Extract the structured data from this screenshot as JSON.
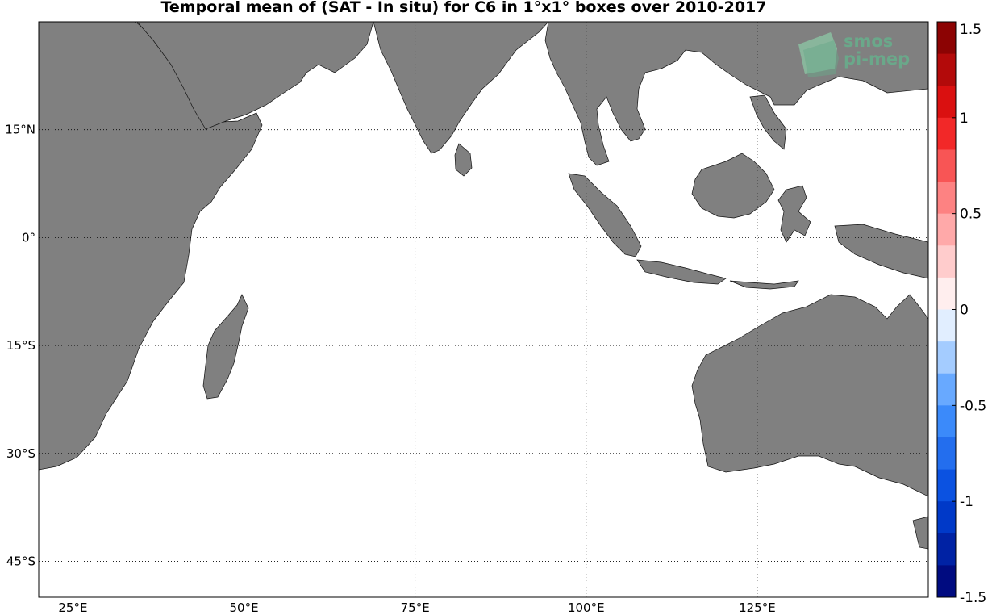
{
  "title": "Temporal mean of (SAT - In situ) for C6 in 1°x1° boxes over 2010-2017",
  "logo": {
    "line1": "smos",
    "line2": "pi-mep",
    "color": "#6aa88a"
  },
  "map": {
    "lon_range": [
      20,
      150
    ],
    "lat_range": [
      -50,
      30
    ],
    "land_color": "#808080",
    "ocean_color": "#ffffff",
    "lon_ticks": [
      {
        "value": 25,
        "label": "25°E"
      },
      {
        "value": 50,
        "label": "50°E"
      },
      {
        "value": 75,
        "label": "75°E"
      },
      {
        "value": 100,
        "label": "100°E"
      },
      {
        "value": 125,
        "label": "125°E"
      }
    ],
    "lat_ticks": [
      {
        "value": 15,
        "label": "15°N"
      },
      {
        "value": 0,
        "label": "0°"
      },
      {
        "value": -15,
        "label": "15°S"
      },
      {
        "value": -30,
        "label": "30°S"
      },
      {
        "value": -45,
        "label": "45°S"
      }
    ],
    "grid": true
  },
  "colorbar": {
    "range": [
      -1.5,
      1.5
    ],
    "ticks": [
      {
        "value": 1.5,
        "label": "1.5"
      },
      {
        "value": 1,
        "label": "1"
      },
      {
        "value": 0.5,
        "label": "0.5"
      },
      {
        "value": 0,
        "label": "0"
      },
      {
        "value": -0.5,
        "label": "-0.5"
      },
      {
        "value": -1,
        "label": "-1"
      },
      {
        "value": -1.5,
        "label": "-1.5"
      }
    ]
  },
  "chart_data": {
    "type": "heatmap",
    "title": "Temporal mean of (SAT - In situ) for C6 in 1°x1° boxes over 2010-2017",
    "xlabel": "",
    "ylabel": "",
    "xlim": [
      20,
      150
    ],
    "ylim": [
      -50,
      30
    ],
    "zlim": [
      -1.5,
      1.5
    ],
    "cell_size_deg": 1,
    "cells": []
  }
}
